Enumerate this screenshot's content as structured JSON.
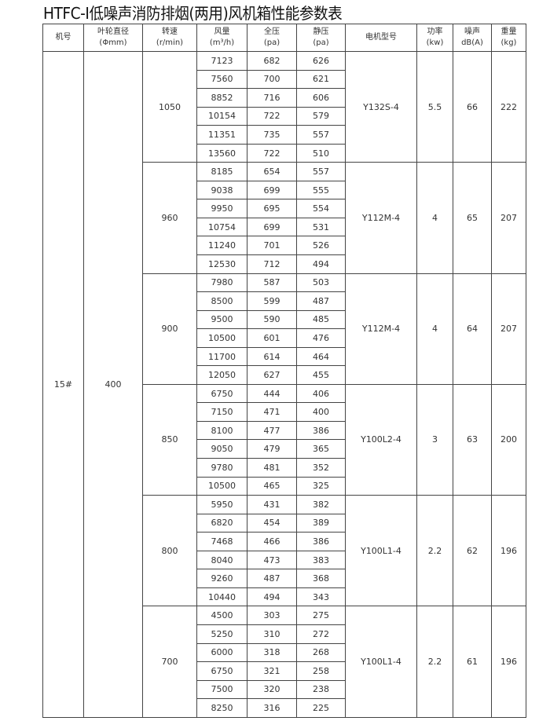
{
  "title": "HTFC-Ⅰ低噪声消防排烟(两用)风机箱性能参数表",
  "headers": [
    {
      "label": "机号",
      "unit": ""
    },
    {
      "label": "叶轮直径",
      "unit": "(Φmm)"
    },
    {
      "label": "转速",
      "unit": "(r/min)"
    },
    {
      "label": "风量",
      "unit": "(m³/h)"
    },
    {
      "label": "全压",
      "unit": "(pa)"
    },
    {
      "label": "静压",
      "unit": "(pa)"
    },
    {
      "label": "电机型号",
      "unit": ""
    },
    {
      "label": "功率",
      "unit": "(kw)"
    },
    {
      "label": "噪声",
      "unit": "dB(A)"
    },
    {
      "label": "重量",
      "unit": "(kg)"
    }
  ],
  "machine_no": "15#",
  "impeller_diameter": "400",
  "groups": [
    {
      "speed": "1050",
      "motor": "Y132S-4",
      "power": "5.5",
      "noise": "66",
      "weight": "222",
      "rows": [
        [
          "7123",
          "682",
          "626"
        ],
        [
          "7560",
          "700",
          "621"
        ],
        [
          "8852",
          "716",
          "606"
        ],
        [
          "10154",
          "722",
          "579"
        ],
        [
          "11351",
          "735",
          "557"
        ],
        [
          "13560",
          "722",
          "510"
        ]
      ]
    },
    {
      "speed": "960",
      "motor": "Y112M-4",
      "power": "4",
      "noise": "65",
      "weight": "207",
      "rows": [
        [
          "8185",
          "654",
          "557"
        ],
        [
          "9038",
          "699",
          "555"
        ],
        [
          "9950",
          "695",
          "554"
        ],
        [
          "10754",
          "699",
          "531"
        ],
        [
          "11240",
          "701",
          "526"
        ],
        [
          "12530",
          "712",
          "494"
        ]
      ]
    },
    {
      "speed": "900",
      "motor": "Y112M-4",
      "power": "4",
      "noise": "64",
      "weight": "207",
      "rows": [
        [
          "7980",
          "587",
          "503"
        ],
        [
          "8500",
          "599",
          "487"
        ],
        [
          "9500",
          "590",
          "485"
        ],
        [
          "10500",
          "601",
          "476"
        ],
        [
          "11700",
          "614",
          "464"
        ],
        [
          "12050",
          "627",
          "455"
        ]
      ]
    },
    {
      "speed": "850",
      "motor": "Y100L2-4",
      "power": "3",
      "noise": "63",
      "weight": "200",
      "rows": [
        [
          "6750",
          "444",
          "406"
        ],
        [
          "7150",
          "471",
          "400"
        ],
        [
          "8100",
          "477",
          "386"
        ],
        [
          "9050",
          "479",
          "365"
        ],
        [
          "9780",
          "481",
          "352"
        ],
        [
          "10500",
          "465",
          "325"
        ]
      ]
    },
    {
      "speed": "800",
      "motor": "Y100L1-4",
      "power": "2.2",
      "noise": "62",
      "weight": "196",
      "rows": [
        [
          "5950",
          "431",
          "382"
        ],
        [
          "6820",
          "454",
          "389"
        ],
        [
          "7468",
          "466",
          "386"
        ],
        [
          "8040",
          "473",
          "383"
        ],
        [
          "9260",
          "487",
          "368"
        ],
        [
          "10440",
          "494",
          "343"
        ]
      ]
    },
    {
      "speed": "700",
      "motor": "Y100L1-4",
      "power": "2.2",
      "noise": "61",
      "weight": "196",
      "rows": [
        [
          "4500",
          "303",
          "275"
        ],
        [
          "5250",
          "310",
          "272"
        ],
        [
          "6000",
          "318",
          "268"
        ],
        [
          "6750",
          "321",
          "258"
        ],
        [
          "7500",
          "320",
          "238"
        ],
        [
          "8250",
          "316",
          "225"
        ]
      ]
    }
  ]
}
